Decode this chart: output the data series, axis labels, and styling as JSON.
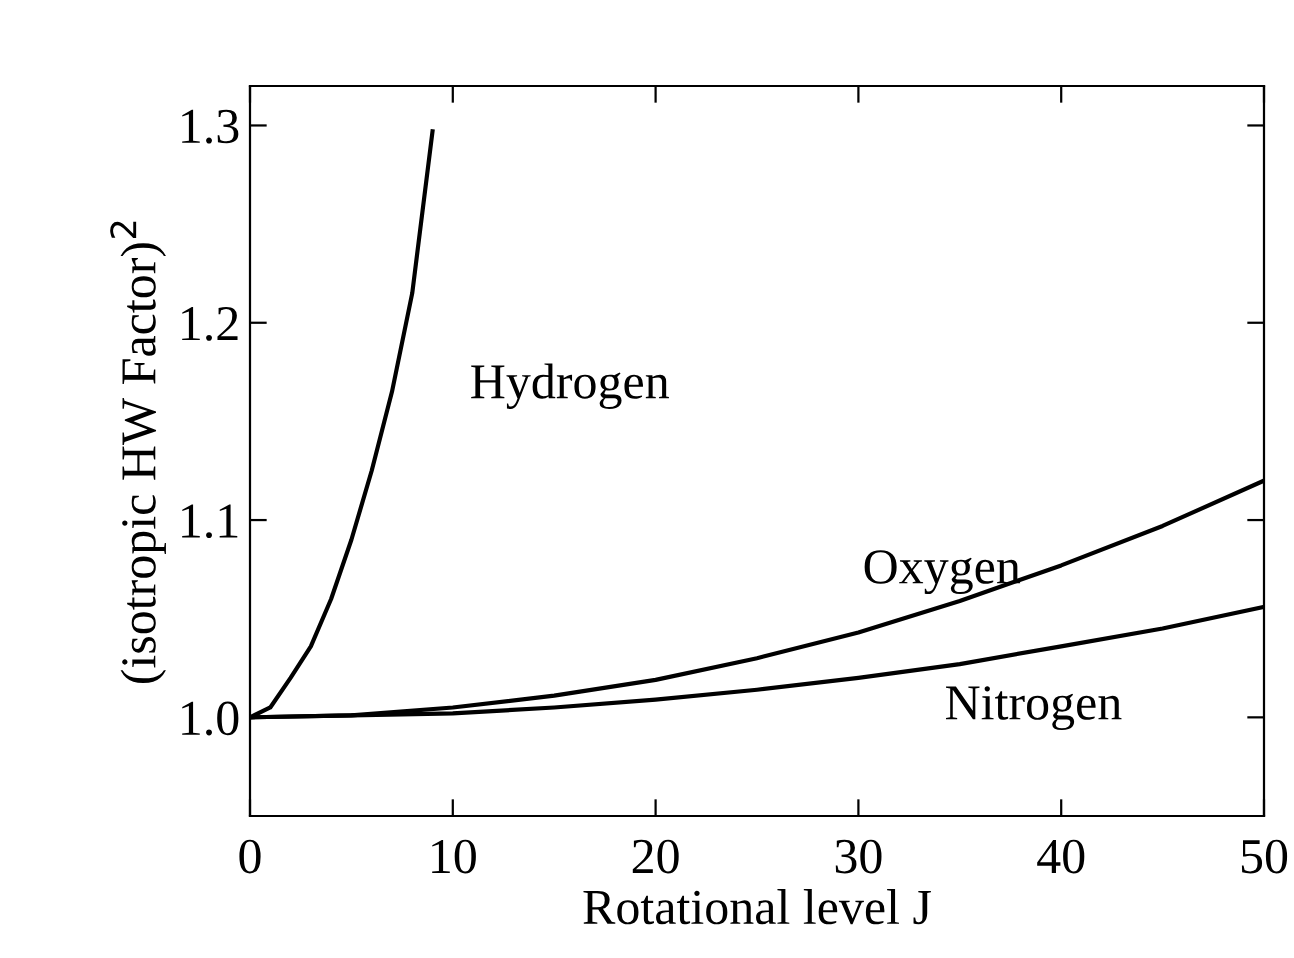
{
  "chart_data": {
    "type": "line",
    "xlabel": "Rotational level J",
    "ylabel": "(isotropic HW Factor)$^{2}$",
    "xlim": [
      0,
      50
    ],
    "ylim": [
      0.95,
      1.32
    ],
    "xticks": [
      0,
      10,
      20,
      30,
      40,
      50
    ],
    "yticks": [
      {
        "value": 1.0,
        "label": "1.0"
      },
      1.1,
      1.2,
      1.3
    ],
    "grid": false,
    "legend": false,
    "marker": "none",
    "line_style": "solid",
    "series": [
      {
        "name": "Hydrogen",
        "color": "#000000",
        "x": [
          0,
          1,
          2,
          3,
          4,
          5,
          6,
          7,
          8,
          9
        ],
        "values": [
          1.0,
          1.005,
          1.02,
          1.036,
          1.06,
          1.09,
          1.125,
          1.165,
          1.215,
          1.297
        ]
      },
      {
        "name": "Oxygen",
        "color": "#000000",
        "x": [
          0,
          5,
          10,
          15,
          20,
          25,
          30,
          35,
          40,
          45,
          50
        ],
        "values": [
          1.0,
          1.001,
          1.005,
          1.011,
          1.019,
          1.03,
          1.043,
          1.059,
          1.077,
          1.097,
          1.12
        ]
      },
      {
        "name": "Nitrogen",
        "color": "#000000",
        "x": [
          0,
          5,
          10,
          15,
          20,
          25,
          30,
          35,
          40,
          45,
          50
        ],
        "values": [
          1.0,
          1.001,
          1.002,
          1.005,
          1.009,
          1.014,
          1.02,
          1.027,
          1.036,
          1.045,
          1.056
        ]
      }
    ]
  }
}
